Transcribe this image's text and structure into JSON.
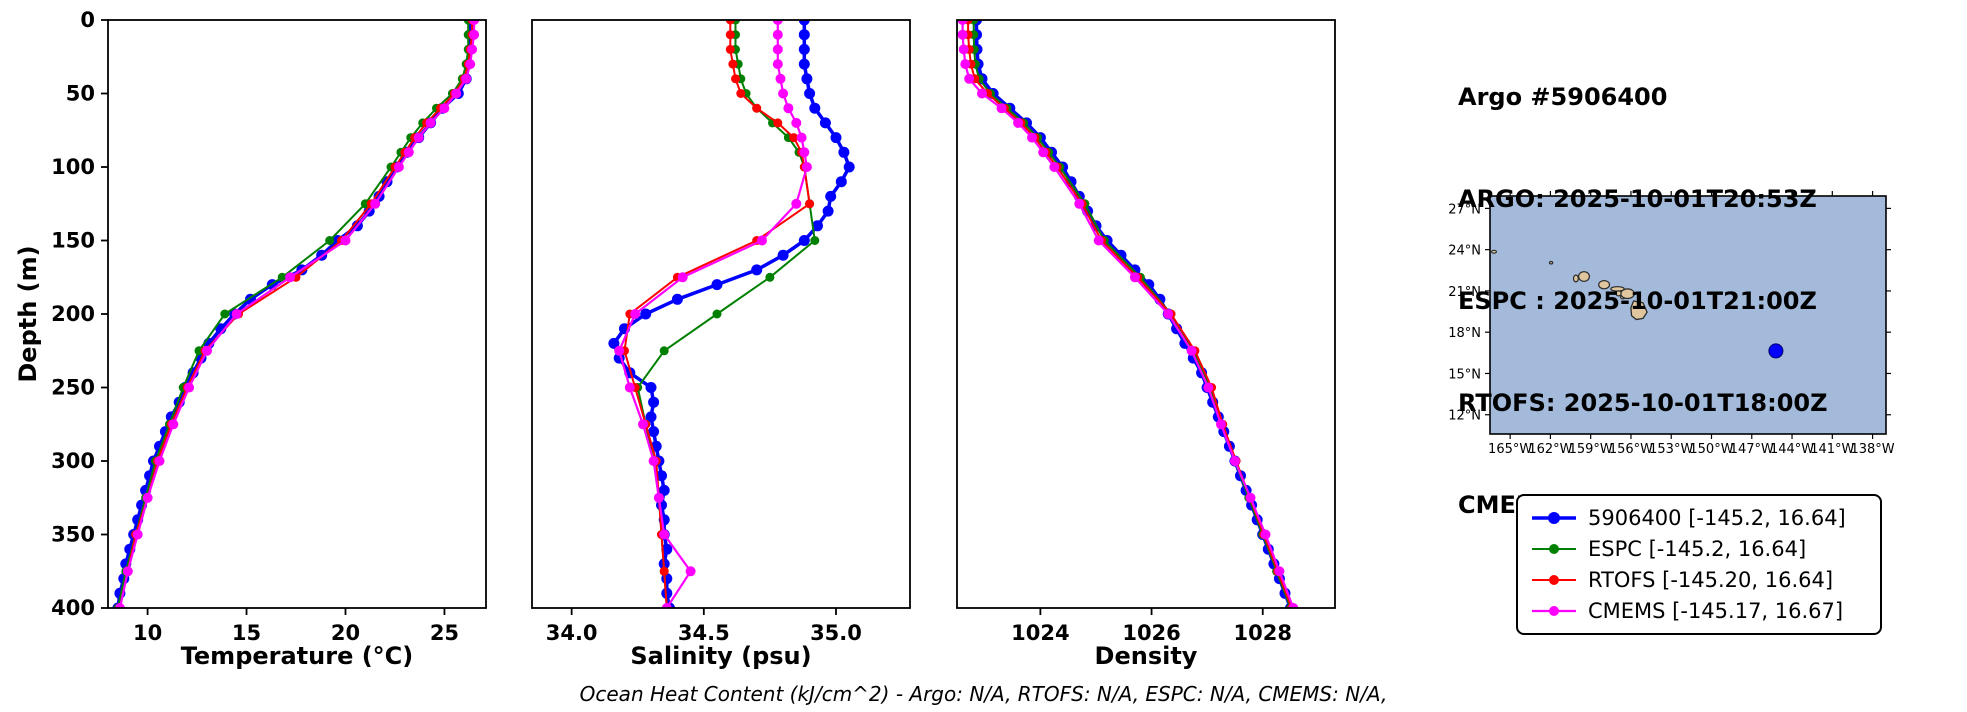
{
  "info": {
    "lines": [
      "Argo #5906400",
      "ARGO: 2025-10-01T20:53Z",
      "ESPC : 2025-10-01T21:00Z",
      "RTOFS: 2025-10-01T18:00Z",
      "CMEMS: 2025-10-01T18:00Z"
    ]
  },
  "footer": "Ocean Heat Content (kJ/cm^2) - Argo: N/A,  RTOFS: N/A,  ESPC: N/A,  CMEMS: N/A,",
  "depth_axis": {
    "label": "Depth (m)",
    "lim": [
      0,
      400
    ],
    "ticks": [
      0,
      50,
      100,
      150,
      200,
      250,
      300,
      350,
      400
    ],
    "inverted": true
  },
  "depths": {
    "argo": [
      0,
      10,
      20,
      30,
      40,
      50,
      60,
      70,
      80,
      90,
      100,
      110,
      120,
      130,
      140,
      150,
      160,
      170,
      180,
      190,
      200,
      210,
      220,
      230,
      240,
      250,
      260,
      270,
      280,
      290,
      300,
      310,
      320,
      330,
      340,
      350,
      360,
      370,
      380,
      390,
      400
    ],
    "model": [
      0,
      10,
      20,
      30,
      40,
      50,
      60,
      70,
      80,
      90,
      100,
      125,
      150,
      175,
      200,
      225,
      250,
      275,
      300,
      325,
      350,
      375,
      400
    ]
  },
  "chart_data": [
    {
      "type": "line",
      "xlabel": "Temperature (°C)",
      "ylabel": "Depth (m)",
      "xlim": [
        8.0,
        27.1
      ],
      "ylim": [
        0,
        400
      ],
      "y_inverted": true,
      "grid": false,
      "xticks": [
        10,
        15,
        20,
        25
      ],
      "xtick_labels": [
        "10",
        "15",
        "20",
        "25"
      ],
      "series": [
        {
          "name": "5906400",
          "color": "#0000ff",
          "line_width": 3.5,
          "marker_size": 5.5,
          "depths": "argo",
          "values": [
            26.3,
            26.3,
            26.3,
            26.2,
            26.1,
            25.7,
            24.9,
            24.3,
            23.7,
            23.1,
            22.6,
            22.1,
            21.7,
            21.2,
            20.6,
            19.6,
            18.8,
            17.8,
            16.3,
            15.2,
            14.4,
            13.7,
            13.1,
            12.7,
            12.3,
            11.9,
            11.6,
            11.2,
            10.9,
            10.6,
            10.3,
            10.1,
            9.9,
            9.7,
            9.5,
            9.3,
            9.1,
            8.9,
            8.8,
            8.6,
            8.5
          ]
        },
        {
          "name": "ESPC",
          "color": "#008000",
          "line_width": 2,
          "marker_size": 4.5,
          "depths": "model",
          "values": [
            26.2,
            26.2,
            26.2,
            26.1,
            25.9,
            25.4,
            24.6,
            23.9,
            23.3,
            22.8,
            22.3,
            21.0,
            19.2,
            16.8,
            13.9,
            12.6,
            11.8,
            11.1,
            10.4,
            9.9,
            9.4,
            8.9,
            8.5
          ]
        },
        {
          "name": "RTOFS",
          "color": "#ff0000",
          "line_width": 2,
          "marker_size": 4.5,
          "depths": "model",
          "values": [
            26.4,
            26.4,
            26.3,
            26.2,
            26.0,
            25.5,
            24.8,
            24.1,
            23.5,
            23.0,
            22.5,
            21.3,
            19.8,
            17.5,
            14.6,
            12.9,
            12.0,
            11.2,
            10.5,
            10.0,
            9.4,
            9.0,
            8.6
          ]
        },
        {
          "name": "CMEMS",
          "color": "#ff00ff",
          "line_width": 2.2,
          "marker_size": 5,
          "depths": "model",
          "values": [
            26.5,
            26.5,
            26.4,
            26.3,
            26.1,
            25.6,
            25.0,
            24.3,
            23.7,
            23.2,
            22.7,
            21.5,
            20.0,
            17.2,
            14.5,
            13.0,
            12.1,
            11.3,
            10.6,
            10.0,
            9.5,
            9.0,
            8.6
          ]
        }
      ]
    },
    {
      "type": "line",
      "xlabel": "Salinity (psu)",
      "ylabel": "Depth (m)",
      "xlim": [
        33.85,
        35.28
      ],
      "ylim": [
        0,
        400
      ],
      "y_inverted": true,
      "grid": false,
      "xticks": [
        34.0,
        34.5,
        35.0
      ],
      "xtick_labels": [
        "34.0",
        "34.5",
        "35.0"
      ],
      "series": [
        {
          "name": "5906400",
          "color": "#0000ff",
          "line_width": 3.5,
          "marker_size": 5.5,
          "depths": "argo",
          "values": [
            34.88,
            34.88,
            34.88,
            34.88,
            34.89,
            34.9,
            34.92,
            34.96,
            35.0,
            35.03,
            35.05,
            35.02,
            34.98,
            34.97,
            34.93,
            34.88,
            34.8,
            34.7,
            34.55,
            34.4,
            34.28,
            34.2,
            34.16,
            34.18,
            34.22,
            34.3,
            34.31,
            34.3,
            34.31,
            34.32,
            34.33,
            34.34,
            34.35,
            34.34,
            34.35,
            34.35,
            34.36,
            34.35,
            34.36,
            34.36,
            34.37
          ]
        },
        {
          "name": "ESPC",
          "color": "#008000",
          "line_width": 2,
          "marker_size": 4.5,
          "depths": "model",
          "values": [
            34.62,
            34.62,
            34.62,
            34.63,
            34.64,
            34.66,
            34.7,
            34.76,
            34.82,
            34.86,
            34.88,
            34.9,
            34.92,
            34.75,
            34.55,
            34.35,
            34.25,
            34.28,
            34.31,
            34.33,
            34.34,
            34.35,
            34.36
          ]
        },
        {
          "name": "RTOFS",
          "color": "#ff0000",
          "line_width": 2,
          "marker_size": 4.5,
          "depths": "model",
          "values": [
            34.6,
            34.6,
            34.6,
            34.61,
            34.62,
            34.64,
            34.7,
            34.78,
            34.84,
            34.87,
            34.88,
            34.9,
            34.7,
            34.4,
            34.22,
            34.2,
            34.24,
            34.28,
            34.32,
            34.33,
            34.34,
            34.35,
            34.36
          ]
        },
        {
          "name": "CMEMS",
          "color": "#ff00ff",
          "line_width": 2.2,
          "marker_size": 5,
          "depths": "model",
          "values": [
            34.78,
            34.78,
            34.78,
            34.78,
            34.79,
            34.8,
            34.82,
            34.85,
            34.87,
            34.88,
            34.89,
            34.85,
            34.72,
            34.42,
            34.24,
            34.18,
            34.22,
            34.27,
            34.31,
            34.33,
            34.35,
            34.45,
            34.36
          ]
        }
      ]
    },
    {
      "type": "line",
      "xlabel": "Density",
      "ylabel": "Depth (m)",
      "xlim": [
        1022.5,
        1029.3
      ],
      "ylim": [
        0,
        400
      ],
      "y_inverted": true,
      "grid": false,
      "xticks": [
        1024,
        1026,
        1028
      ],
      "xtick_labels": [
        "1024",
        "1026",
        "1028"
      ],
      "series": [
        {
          "name": "5906400",
          "color": "#0000ff",
          "line_width": 3.5,
          "marker_size": 5.5,
          "depths": "argo",
          "values": [
            1022.85,
            1022.85,
            1022.86,
            1022.88,
            1022.95,
            1023.15,
            1023.45,
            1023.75,
            1024.0,
            1024.2,
            1024.4,
            1024.55,
            1024.7,
            1024.85,
            1025.0,
            1025.2,
            1025.45,
            1025.7,
            1025.95,
            1026.15,
            1026.3,
            1026.45,
            1026.6,
            1026.75,
            1026.9,
            1027.0,
            1027.1,
            1027.2,
            1027.3,
            1027.4,
            1027.5,
            1027.6,
            1027.7,
            1027.8,
            1027.9,
            1028.0,
            1028.1,
            1028.2,
            1028.3,
            1028.4,
            1028.5
          ]
        },
        {
          "name": "ESPC",
          "color": "#008000",
          "line_width": 2,
          "marker_size": 4.5,
          "depths": "model",
          "values": [
            1022.8,
            1022.8,
            1022.81,
            1022.83,
            1022.9,
            1023.1,
            1023.4,
            1023.7,
            1023.95,
            1024.15,
            1024.35,
            1024.8,
            1025.15,
            1025.8,
            1026.35,
            1026.75,
            1027.05,
            1027.25,
            1027.5,
            1027.75,
            1028.0,
            1028.25,
            1028.5
          ]
        },
        {
          "name": "RTOFS",
          "color": "#ff0000",
          "line_width": 2,
          "marker_size": 4.5,
          "depths": "model",
          "values": [
            1022.7,
            1022.7,
            1022.72,
            1022.75,
            1022.82,
            1023.05,
            1023.35,
            1023.65,
            1023.9,
            1024.1,
            1024.3,
            1024.75,
            1025.1,
            1025.75,
            1026.35,
            1026.78,
            1027.08,
            1027.28,
            1027.52,
            1027.77,
            1028.02,
            1028.27,
            1028.52
          ]
        },
        {
          "name": "CMEMS",
          "color": "#ff00ff",
          "line_width": 2.2,
          "marker_size": 5,
          "depths": "model",
          "values": [
            1022.6,
            1022.6,
            1022.62,
            1022.65,
            1022.72,
            1022.95,
            1023.3,
            1023.6,
            1023.85,
            1024.05,
            1024.25,
            1024.7,
            1025.05,
            1025.7,
            1026.3,
            1026.72,
            1027.02,
            1027.25,
            1027.5,
            1027.78,
            1028.05,
            1028.3,
            1028.55
          ]
        }
      ]
    }
  ],
  "legend": {
    "items": [
      {
        "label": "5906400 [-145.2, 16.64]",
        "color": "#0000ff",
        "line_width": 3.5,
        "marker_size": 6
      },
      {
        "label": "ESPC [-145.2, 16.64]",
        "color": "#008000",
        "line_width": 2,
        "marker_size": 5
      },
      {
        "label": "RTOFS [-145.20, 16.64]",
        "color": "#ff0000",
        "line_width": 2,
        "marker_size": 5
      },
      {
        "label": "CMEMS [-145.17, 16.67]",
        "color": "#ff00ff",
        "line_width": 2.2,
        "marker_size": 5
      }
    ]
  },
  "map": {
    "ocean_color": "#a3badb",
    "island_fill": "#dfc69e",
    "island_stroke": "#2b2b2b",
    "border_color": "#000000",
    "lon_range": [
      -166.5,
      -137.0
    ],
    "lat_range": [
      10.6,
      27.9
    ],
    "lon_tick_values": [
      -165,
      -162,
      -159,
      -156,
      -153,
      -150,
      -147,
      -144,
      -141,
      -138
    ],
    "lon_tick_labels": [
      "165°W",
      "162°W",
      "159°W",
      "156°W",
      "153°W",
      "150°W",
      "147°W",
      "144°W",
      "141°W",
      "138°W"
    ],
    "lat_tick_values": [
      27,
      24,
      21,
      18,
      15,
      12
    ],
    "lat_tick_labels": [
      "27°N",
      "24°N",
      "21°N",
      "18°N",
      "15°N",
      "12°N"
    ],
    "islands_ellipses": [
      [
        -166.2,
        23.85,
        0.18,
        0.1
      ],
      [
        -161.95,
        23.05,
        0.12,
        0.08
      ],
      [
        -160.1,
        21.9,
        0.18,
        0.25
      ],
      [
        -159.5,
        22.05,
        0.4,
        0.35
      ],
      [
        -158.0,
        21.45,
        0.4,
        0.3
      ],
      [
        -157.0,
        21.15,
        0.5,
        0.16
      ],
      [
        -156.92,
        20.82,
        0.2,
        0.18
      ],
      [
        -156.6,
        20.55,
        0.18,
        0.12
      ],
      [
        -156.25,
        20.8,
        0.5,
        0.35
      ]
    ],
    "big_island": [
      [
        -156.0,
        19.78
      ],
      [
        -155.8,
        20.27
      ],
      [
        -155.1,
        20.14
      ],
      [
        -154.8,
        19.45
      ],
      [
        -155.1,
        19.0
      ],
      [
        -155.6,
        18.92
      ],
      [
        -155.95,
        19.2
      ]
    ],
    "float_marker": {
      "lon": -145.2,
      "lat": 16.64,
      "color": "#0000ff"
    }
  }
}
